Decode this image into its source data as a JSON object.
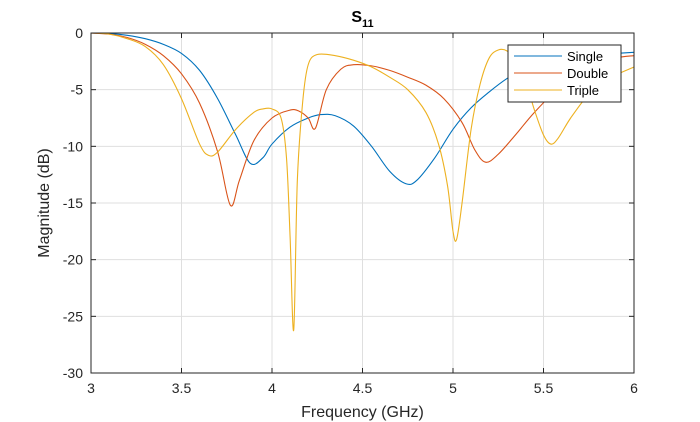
{
  "chart_data": {
    "type": "line",
    "title": "S",
    "title_subscript": "11",
    "xlabel": "Frequency (GHz)",
    "ylabel": "Magnitude (dB)",
    "xlim": [
      3,
      6
    ],
    "ylim": [
      -30,
      0
    ],
    "xticks": [
      3,
      3.5,
      4,
      4.5,
      5,
      5.5,
      6
    ],
    "yticks": [
      0,
      -5,
      -10,
      -15,
      -20,
      -25,
      -30
    ],
    "xtick_labels": [
      "3",
      "3.5",
      "4",
      "4.5",
      "5",
      "5.5",
      "6"
    ],
    "ytick_labels": [
      "0",
      "-5",
      "-10",
      "-15",
      "-20",
      "-25",
      "-30"
    ],
    "grid": true,
    "legend_position": "top-right",
    "series": [
      {
        "name": "Single",
        "color": "#0072BD",
        "points": [
          [
            3,
            0
          ],
          [
            3.1,
            -0.05
          ],
          [
            3.2,
            -0.2
          ],
          [
            3.3,
            -0.5
          ],
          [
            3.4,
            -1.0
          ],
          [
            3.5,
            -1.8
          ],
          [
            3.6,
            -3.3
          ],
          [
            3.7,
            -5.8
          ],
          [
            3.8,
            -9.0
          ],
          [
            3.88,
            -11.5
          ],
          [
            3.95,
            -11.0
          ],
          [
            4.0,
            -9.8
          ],
          [
            4.1,
            -8.3
          ],
          [
            4.2,
            -7.5
          ],
          [
            4.27,
            -7.2
          ],
          [
            4.35,
            -7.3
          ],
          [
            4.45,
            -8.2
          ],
          [
            4.55,
            -10.0
          ],
          [
            4.65,
            -12.2
          ],
          [
            4.74,
            -13.3
          ],
          [
            4.8,
            -13.0
          ],
          [
            4.9,
            -11.0
          ],
          [
            5.0,
            -8.5
          ],
          [
            5.1,
            -6.6
          ],
          [
            5.2,
            -5.2
          ],
          [
            5.3,
            -4.0
          ],
          [
            5.4,
            -3.1
          ],
          [
            5.5,
            -2.5
          ],
          [
            5.6,
            -2.1
          ],
          [
            5.8,
            -1.9
          ],
          [
            6.0,
            -1.7
          ]
        ]
      },
      {
        "name": "Double",
        "color": "#D95319",
        "points": [
          [
            3,
            0
          ],
          [
            3.1,
            -0.1
          ],
          [
            3.2,
            -0.4
          ],
          [
            3.3,
            -1.0
          ],
          [
            3.4,
            -2.0
          ],
          [
            3.5,
            -3.6
          ],
          [
            3.6,
            -6.2
          ],
          [
            3.7,
            -10.5
          ],
          [
            3.77,
            -15.2
          ],
          [
            3.82,
            -13.0
          ],
          [
            3.9,
            -9.5
          ],
          [
            4.0,
            -7.5
          ],
          [
            4.1,
            -6.8
          ],
          [
            4.15,
            -6.9
          ],
          [
            4.2,
            -7.5
          ],
          [
            4.24,
            -8.4
          ],
          [
            4.3,
            -5.0
          ],
          [
            4.38,
            -3.2
          ],
          [
            4.45,
            -2.8
          ],
          [
            4.55,
            -2.9
          ],
          [
            4.65,
            -3.3
          ],
          [
            4.75,
            -3.9
          ],
          [
            4.85,
            -4.6
          ],
          [
            4.95,
            -5.8
          ],
          [
            5.05,
            -7.9
          ],
          [
            5.12,
            -10.3
          ],
          [
            5.18,
            -11.4
          ],
          [
            5.25,
            -10.7
          ],
          [
            5.35,
            -8.9
          ],
          [
            5.45,
            -7.0
          ],
          [
            5.6,
            -4.6
          ],
          [
            5.75,
            -2.9
          ],
          [
            5.9,
            -2.2
          ],
          [
            6.0,
            -2.0
          ]
        ]
      },
      {
        "name": "Triple",
        "color": "#EDB120",
        "points": [
          [
            3,
            0
          ],
          [
            3.1,
            -0.1
          ],
          [
            3.2,
            -0.5
          ],
          [
            3.3,
            -1.2
          ],
          [
            3.4,
            -2.8
          ],
          [
            3.5,
            -5.8
          ],
          [
            3.6,
            -9.8
          ],
          [
            3.65,
            -10.8
          ],
          [
            3.7,
            -10.5
          ],
          [
            3.8,
            -8.5
          ],
          [
            3.9,
            -7.0
          ],
          [
            3.95,
            -6.7
          ],
          [
            4.0,
            -6.7
          ],
          [
            4.05,
            -7.5
          ],
          [
            4.08,
            -11.0
          ],
          [
            4.1,
            -18.0
          ],
          [
            4.12,
            -26.2
          ],
          [
            4.14,
            -13.0
          ],
          [
            4.17,
            -6.0
          ],
          [
            4.2,
            -2.8
          ],
          [
            4.25,
            -1.9
          ],
          [
            4.35,
            -2.0
          ],
          [
            4.45,
            -2.4
          ],
          [
            4.55,
            -3.0
          ],
          [
            4.65,
            -3.9
          ],
          [
            4.75,
            -5.0
          ],
          [
            4.85,
            -7.0
          ],
          [
            4.92,
            -9.8
          ],
          [
            4.97,
            -13.5
          ],
          [
            5.0,
            -17.5
          ],
          [
            5.02,
            -18.2
          ],
          [
            5.05,
            -15.0
          ],
          [
            5.1,
            -8.5
          ],
          [
            5.15,
            -4.5
          ],
          [
            5.2,
            -2.2
          ],
          [
            5.25,
            -1.5
          ],
          [
            5.3,
            -1.6
          ],
          [
            5.35,
            -2.5
          ],
          [
            5.4,
            -4.2
          ],
          [
            5.45,
            -6.8
          ],
          [
            5.5,
            -9.0
          ],
          [
            5.54,
            -9.8
          ],
          [
            5.58,
            -9.3
          ],
          [
            5.65,
            -7.5
          ],
          [
            5.75,
            -5.4
          ],
          [
            5.85,
            -4.1
          ],
          [
            6.0,
            -3.0
          ]
        ]
      }
    ]
  }
}
